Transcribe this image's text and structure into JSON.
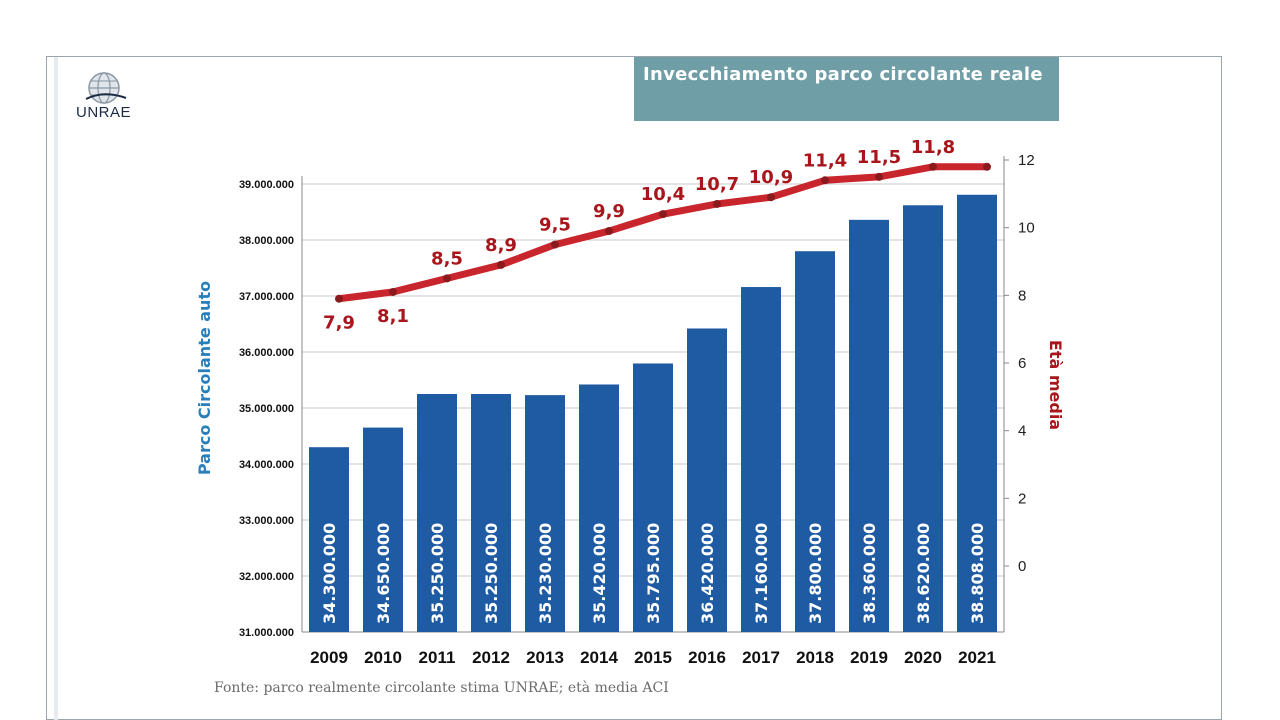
{
  "logo": {
    "text": "UNRAE"
  },
  "chart_data": {
    "type": "bar",
    "title": "Invecchiamento parco circolante reale",
    "categories": [
      "2009",
      "2010",
      "2011",
      "2012",
      "2013",
      "2014",
      "2015",
      "2016",
      "2017",
      "2018",
      "2019",
      "2020",
      "2021"
    ],
    "series": [
      {
        "name": "Parco Circolante auto",
        "type": "bar",
        "axis": "left",
        "color": "#1f5ba3",
        "values": [
          34300000,
          34650000,
          35250000,
          35250000,
          35230000,
          35420000,
          35795000,
          36420000,
          37160000,
          37800000,
          38360000,
          38620000,
          38808000
        ],
        "labels": [
          "34.300.000",
          "34.650.000",
          "35.250.000",
          "35.250.000",
          "35.230.000",
          "35.420.000",
          "35.795.000",
          "36.420.000",
          "37.160.000",
          "37.800.000",
          "38.360.000",
          "38.620.000",
          "38.808.000"
        ]
      },
      {
        "name": "Età media",
        "type": "line",
        "axis": "right",
        "color": "#c8262c",
        "values": [
          7.9,
          8.1,
          8.5,
          8.9,
          9.5,
          9.9,
          10.4,
          10.7,
          10.9,
          11.4,
          11.5,
          11.8,
          11.8
        ],
        "labels": [
          "7,9",
          "8,1",
          "8,5",
          "8,9",
          "9,5",
          "9,9",
          "10,4",
          "10,7",
          "10,9",
          "11,4",
          "11,5",
          "11,8",
          ""
        ]
      }
    ],
    "y_left": {
      "label": "Parco Circolante auto",
      "min": 31000000,
      "max": 39000000,
      "ticks": [
        31000000,
        32000000,
        33000000,
        34000000,
        35000000,
        36000000,
        37000000,
        38000000,
        39000000
      ],
      "tick_labels": [
        "31.000.000",
        "32.000.000",
        "33.000.000",
        "34.000.000",
        "35.000.000",
        "36.000.000",
        "37.000.000",
        "38.000.000",
        "39.000.000"
      ]
    },
    "y_right": {
      "label": "Età media",
      "ticks": [
        0,
        2,
        4,
        6,
        8,
        10,
        12
      ],
      "tick_labels": [
        "0",
        "2",
        "4",
        "6",
        "8",
        "10",
        "12"
      ]
    },
    "grid": true,
    "legend": "none",
    "source": "Fonte:  parco realmente circolante stima UNRAE; età media ACI"
  }
}
